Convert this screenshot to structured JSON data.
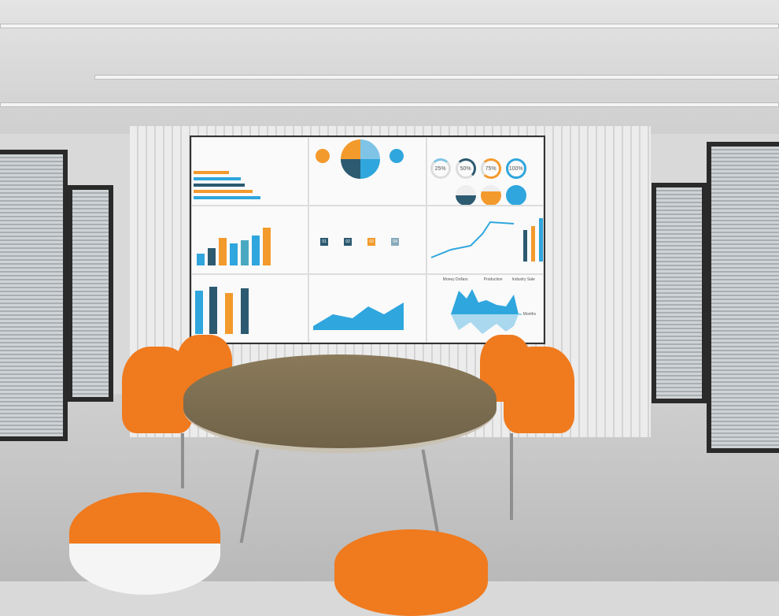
{
  "screen": {
    "percent_labels": [
      "25%",
      "50%",
      "75%",
      "100%"
    ],
    "step_labels": [
      "01",
      "02",
      "03",
      "04"
    ],
    "wave_chart": {
      "y_label": "Money Dollars",
      "legend": [
        "Production",
        "Industry Sale"
      ],
      "x_label": "Months"
    }
  },
  "colors": {
    "accent_orange": "#f39a2d",
    "accent_blue": "#2fa6dd",
    "dark_teal": "#2c5a70",
    "chair_orange": "#f07a1e"
  }
}
